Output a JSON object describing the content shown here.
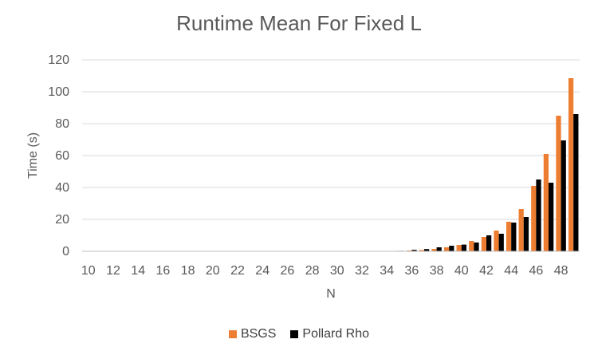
{
  "chart_data": {
    "type": "bar",
    "title": "Runtime Mean For Fixed L",
    "xlabel": "N",
    "ylabel": "Time (s)",
    "ylim": [
      0,
      120
    ],
    "yticks": [
      0,
      20,
      40,
      60,
      80,
      100,
      120
    ],
    "categories": [
      10,
      11,
      12,
      13,
      14,
      15,
      16,
      17,
      18,
      19,
      20,
      21,
      22,
      23,
      24,
      25,
      26,
      27,
      28,
      29,
      30,
      31,
      32,
      33,
      34,
      35,
      36,
      37,
      38,
      39,
      40,
      41,
      42,
      43,
      44,
      45,
      46,
      47,
      48,
      49
    ],
    "xtick_labels": [
      "10",
      "",
      "12",
      "",
      "14",
      "",
      "16",
      "",
      "18",
      "",
      "20",
      "",
      "22",
      "",
      "24",
      "",
      "26",
      "",
      "28",
      "",
      "30",
      "",
      "32",
      "",
      "34",
      "",
      "36",
      "",
      "38",
      "",
      "40",
      "",
      "42",
      "",
      "44",
      "",
      "46",
      "",
      "48",
      ""
    ],
    "series": [
      {
        "name": "BSGS",
        "color": "#ED7D31",
        "values": [
          0,
          0.1,
          0.1,
          0.1,
          0.1,
          0.1,
          0.1,
          0.1,
          0.1,
          0.1,
          0.1,
          0.1,
          0.1,
          0.1,
          0.1,
          0.1,
          0.1,
          0.1,
          0.1,
          0.1,
          0.1,
          0.1,
          0.1,
          0.1,
          0.2,
          0.3,
          0.5,
          0.8,
          1.5,
          2.5,
          4,
          6.5,
          9,
          13,
          18.5,
          26.5,
          41,
          61,
          85,
          108.5
        ]
      },
      {
        "name": "Pollard Rho",
        "color": "#000000",
        "values": [
          0,
          0.1,
          0.1,
          0.1,
          0.1,
          0.1,
          0.1,
          0.1,
          0.1,
          0.1,
          0.1,
          0.1,
          0.1,
          0.1,
          0.1,
          0.1,
          0.1,
          0.1,
          0.1,
          0.1,
          0.1,
          0.1,
          0.1,
          0.1,
          0.2,
          0.3,
          0.9,
          1.4,
          2.5,
          3.5,
          4.2,
          5.5,
          10,
          11,
          18,
          21.5,
          45,
          43,
          69.5,
          86
        ]
      }
    ],
    "grid": "horizontal",
    "legend_position": "bottom"
  }
}
